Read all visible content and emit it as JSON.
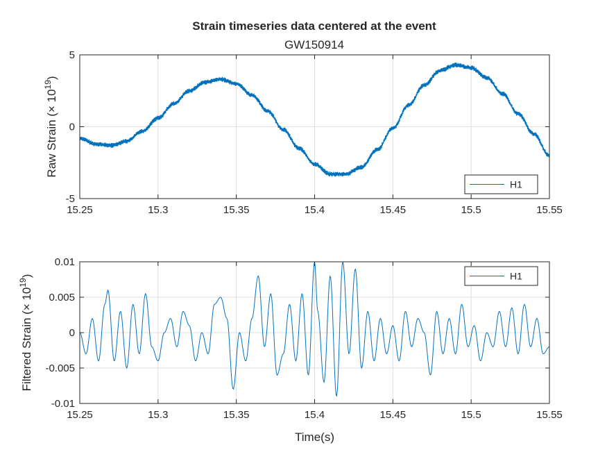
{
  "figure": {
    "title": "Strain timeseries data centered at the event",
    "subtitle": "GW150914",
    "colors": {
      "series": "#0072BD",
      "axis": "#262626",
      "grid": "#dfdfdf",
      "background": "#ffffff"
    }
  },
  "chart_data": [
    {
      "type": "line",
      "xlabel": "",
      "ylabel": "Raw Strain (× 10",
      "ylabel_exp": "19",
      "ylabel_close": ")",
      "xlim": [
        15.25,
        15.55
      ],
      "ylim": [
        -5,
        5
      ],
      "xticks": [
        15.25,
        15.3,
        15.35,
        15.4,
        15.45,
        15.5,
        15.55
      ],
      "xtick_labels": [
        "15.25",
        "15.3",
        "15.35",
        "15.4",
        "15.45",
        "15.5",
        "15.55"
      ],
      "yticks": [
        -5,
        0,
        5
      ],
      "ytick_labels": [
        "-5",
        "0",
        "5"
      ],
      "grid": true,
      "legend": "bottom-right",
      "series": [
        {
          "name": "H1",
          "x": [
            15.25,
            15.26,
            15.27,
            15.28,
            15.29,
            15.3,
            15.31,
            15.32,
            15.33,
            15.34,
            15.35,
            15.36,
            15.37,
            15.38,
            15.39,
            15.4,
            15.41,
            15.42,
            15.43,
            15.44,
            15.45,
            15.46,
            15.47,
            15.48,
            15.49,
            15.5,
            15.51,
            15.52,
            15.53,
            15.54,
            15.55
          ],
          "values": [
            -0.8,
            -1.2,
            -1.3,
            -1.0,
            -0.3,
            0.6,
            1.6,
            2.5,
            3.1,
            3.3,
            3.0,
            2.2,
            1.1,
            -0.2,
            -1.5,
            -2.6,
            -3.3,
            -3.3,
            -2.8,
            -1.6,
            -0.1,
            1.5,
            2.9,
            3.9,
            4.3,
            4.1,
            3.4,
            2.3,
            0.9,
            -0.5,
            -2.0
          ]
        }
      ]
    },
    {
      "type": "line",
      "xlabel": "Time(s)",
      "ylabel": "Filtered Strain (× 10",
      "ylabel_exp": "19",
      "ylabel_close": ")",
      "xlim": [
        15.25,
        15.55
      ],
      "ylim": [
        -0.01,
        0.01
      ],
      "xticks": [
        15.25,
        15.3,
        15.35,
        15.4,
        15.45,
        15.5,
        15.55
      ],
      "xtick_labels": [
        "15.25",
        "15.3",
        "15.35",
        "15.4",
        "15.45",
        "15.5",
        "15.55"
      ],
      "yticks": [
        -0.01,
        -0.005,
        0,
        0.005,
        0.01
      ],
      "ytick_labels": [
        "-0.01",
        "-0.005",
        "0",
        "0.005",
        "0.01"
      ],
      "grid": true,
      "legend": "top-right",
      "series": [
        {
          "name": "H1",
          "x": [
            15.25,
            15.254,
            15.258,
            15.262,
            15.266,
            15.268,
            15.272,
            15.276,
            15.28,
            15.284,
            15.288,
            15.292,
            15.296,
            15.3,
            15.304,
            15.308,
            15.312,
            15.316,
            15.32,
            15.324,
            15.328,
            15.332,
            15.336,
            15.34,
            15.344,
            15.348,
            15.352,
            15.356,
            15.36,
            15.364,
            15.368,
            15.372,
            15.376,
            15.38,
            15.384,
            15.388,
            15.392,
            15.396,
            15.4,
            15.402,
            15.406,
            15.41,
            15.414,
            15.418,
            15.422,
            15.426,
            15.43,
            15.434,
            15.438,
            15.442,
            15.446,
            15.45,
            15.454,
            15.458,
            15.462,
            15.466,
            15.47,
            15.474,
            15.478,
            15.482,
            15.486,
            15.49,
            15.494,
            15.498,
            15.502,
            15.506,
            15.51,
            15.514,
            15.518,
            15.522,
            15.526,
            15.53,
            15.534,
            15.538,
            15.542,
            15.546,
            15.55
          ],
          "values": [
            0.0,
            -0.003,
            0.002,
            -0.004,
            0.004,
            0.006,
            -0.004,
            0.003,
            -0.005,
            0.004,
            -0.003,
            0.0055,
            -0.002,
            -0.004,
            0.0,
            0.002,
            -0.002,
            0.003,
            0.001,
            -0.004,
            0.0,
            -0.003,
            0.004,
            0.005,
            0.002,
            -0.008,
            0.0,
            -0.004,
            0.002,
            0.008,
            -0.002,
            0.0055,
            -0.006,
            -0.003,
            0.004,
            -0.004,
            0.0055,
            -0.006,
            0.01,
            0.003,
            -0.007,
            0.008,
            -0.009,
            0.01,
            -0.003,
            0.009,
            -0.005,
            0.003,
            -0.004,
            0.002,
            -0.003,
            0.001,
            -0.004,
            0.003,
            -0.002,
            0.002,
            0.0,
            -0.006,
            0.003,
            -0.003,
            0.002,
            -0.003,
            0.004,
            -0.002,
            0.001,
            -0.004,
            0.0,
            -0.002,
            0.003,
            -0.002,
            0.0035,
            -0.003,
            0.004,
            -0.002,
            0.002,
            -0.003,
            -0.002
          ]
        }
      ]
    }
  ]
}
